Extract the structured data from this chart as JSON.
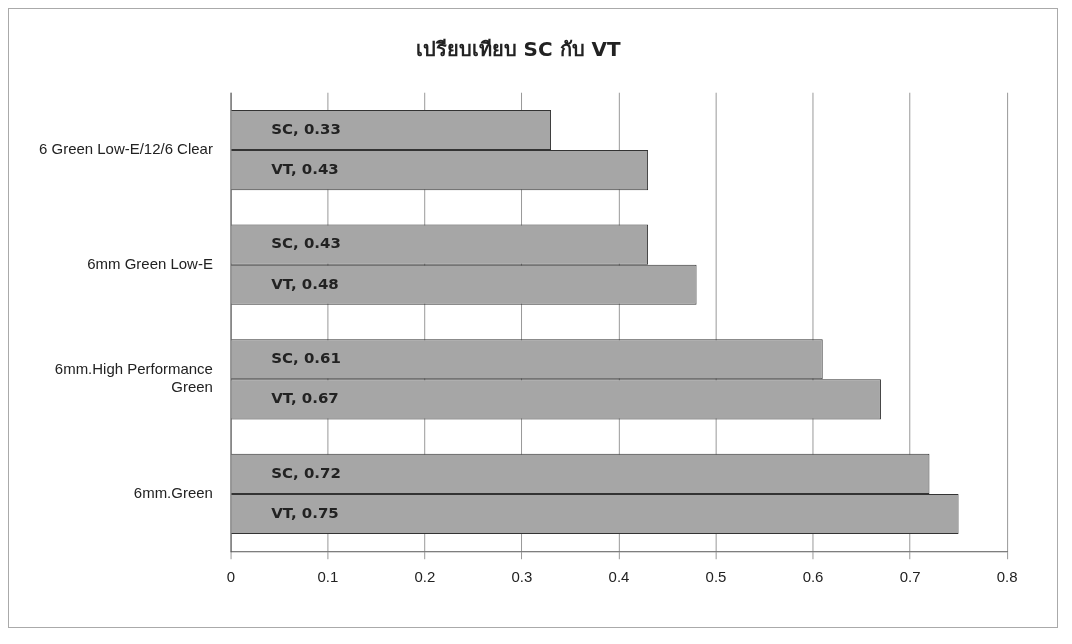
{
  "chart_data": {
    "type": "bar",
    "orientation": "horizontal",
    "title": "เปรียบเทียบ SC กับ VT",
    "categories": [
      "6 Green Low-E/12/6 Clear",
      "6mm Green Low-E",
      "6mm.High Performance Green",
      "6mm.Green"
    ],
    "series": [
      {
        "color": "#a6a6a6",
        "values": [
          0.33,
          0.43,
          0.61,
          0.72
        ],
        "value_labels": [
          "SC, 0.33",
          "SC, 0.43",
          "SC, 0.61",
          "SC, 0.72"
        ]
      },
      {
        "color": "#a6a6a6",
        "values": [
          0.43,
          0.48,
          0.67,
          0.75
        ],
        "value_labels": [
          "VT, 0.43",
          "VT, 0.48",
          "VT, 0.67",
          "VT, 0.75"
        ]
      }
    ],
    "xlim": [
      0,
      0.8
    ],
    "xticks": [
      0,
      0.1,
      0.2,
      0.3,
      0.4,
      0.5,
      0.6,
      0.7,
      0.8
    ],
    "grid": "x",
    "legend": false
  }
}
